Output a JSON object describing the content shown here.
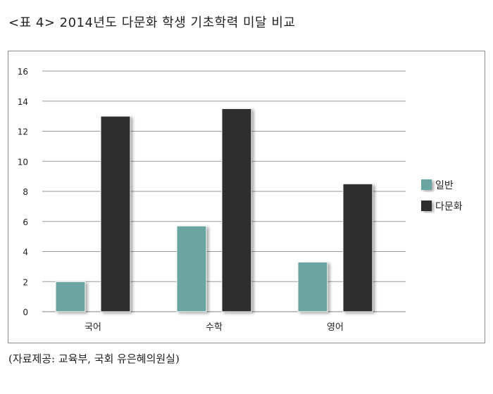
{
  "caption": "<표 4> 2014년도 다문화 학생 기초학력 미달 비교",
  "source": "(자료제공: 교육부, 국회 유은혜의원실)",
  "colors": {
    "series_1": "#6aa5a2",
    "series_2": "#2e2e2e",
    "grid": "#9a9a9a",
    "axis_text": "#222222"
  },
  "chart_data": {
    "type": "bar",
    "categories": [
      "국어",
      "수학",
      "영어"
    ],
    "series": [
      {
        "name": "일반",
        "values": [
          2.0,
          5.7,
          3.3
        ]
      },
      {
        "name": "다문화",
        "values": [
          13.0,
          13.5,
          8.5
        ]
      }
    ],
    "y_ticks": [
      "0",
      "2",
      "4",
      "6",
      "8",
      "10",
      "12",
      "14",
      "16"
    ],
    "ylim": [
      0,
      16
    ],
    "grid": true,
    "legend_position": "right"
  }
}
